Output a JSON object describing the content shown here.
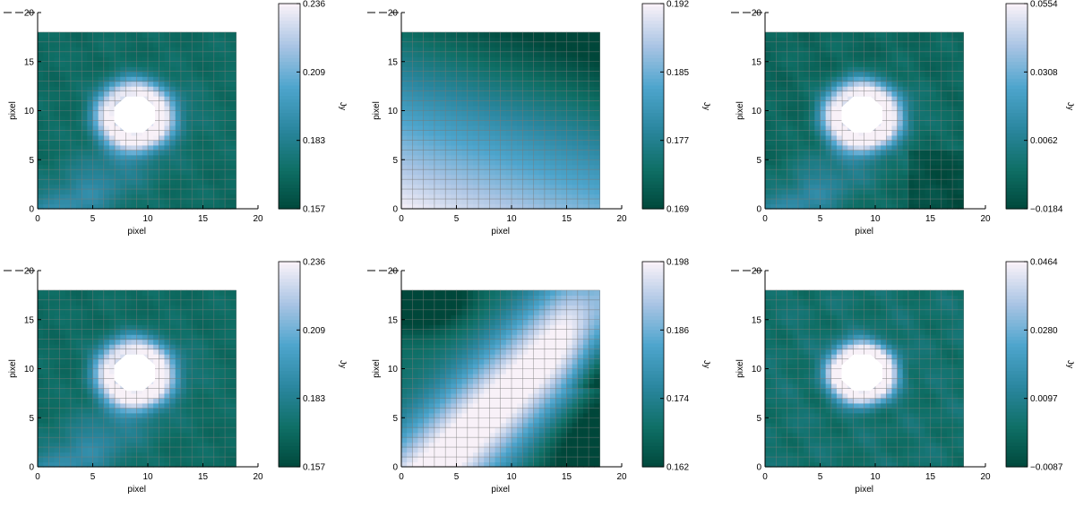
{
  "chart_data": [
    {
      "type": "heatmap",
      "xlabel": "pixel",
      "ylabel": "pixel",
      "colorbar_label": "Jy",
      "xlim": [
        0,
        20
      ],
      "ylim": [
        0,
        20
      ],
      "xticks": [
        0,
        5,
        10,
        15,
        20
      ],
      "yticks": [
        0,
        5,
        10,
        15,
        20
      ],
      "colorbar_ticks": [
        "0.157",
        "0.183",
        "0.209",
        "0.236"
      ],
      "vmin": 0.157,
      "vmax": 0.236,
      "field": "ring",
      "masked_center": [
        8.8,
        9.6
      ],
      "masked_radius": 2.0
    },
    {
      "type": "heatmap",
      "xlabel": "pixel",
      "ylabel": "pixel",
      "colorbar_label": "Jy",
      "xlim": [
        0,
        20
      ],
      "ylim": [
        0,
        20
      ],
      "xticks": [
        0,
        5,
        10,
        15,
        20
      ],
      "yticks": [
        0,
        5,
        10,
        15,
        20
      ],
      "colorbar_ticks": [
        "0.169",
        "0.177",
        "0.185",
        "0.192"
      ],
      "vmin": 0.169,
      "vmax": 0.192,
      "field": "gradient"
    },
    {
      "type": "heatmap",
      "xlabel": "pixel",
      "ylabel": "pixel",
      "colorbar_label": "Jy",
      "xlim": [
        0,
        20
      ],
      "ylim": [
        0,
        20
      ],
      "xticks": [
        0,
        5,
        10,
        15,
        20
      ],
      "yticks": [
        0,
        5,
        10,
        15,
        20
      ],
      "colorbar_ticks": [
        "−0.0184",
        "0.0062",
        "0.0308",
        "0.0554"
      ],
      "vmin": -0.0184,
      "vmax": 0.0554,
      "field": "ring_residual",
      "masked_center": [
        8.8,
        9.6
      ],
      "masked_radius": 2.0
    },
    {
      "type": "heatmap",
      "xlabel": "pixel",
      "ylabel": "pixel",
      "colorbar_label": "Jy",
      "xlim": [
        0,
        20
      ],
      "ylim": [
        0,
        20
      ],
      "xticks": [
        0,
        5,
        10,
        15,
        20
      ],
      "yticks": [
        0,
        5,
        10,
        15,
        20
      ],
      "colorbar_ticks": [
        "0.157",
        "0.183",
        "0.209",
        "0.236"
      ],
      "vmin": 0.157,
      "vmax": 0.236,
      "field": "ring",
      "masked_center": [
        8.8,
        9.6
      ],
      "masked_radius": 2.0
    },
    {
      "type": "heatmap",
      "xlabel": "pixel",
      "ylabel": "pixel",
      "colorbar_label": "Jy",
      "xlim": [
        0,
        20
      ],
      "ylim": [
        0,
        20
      ],
      "xticks": [
        0,
        5,
        10,
        15,
        20
      ],
      "yticks": [
        0,
        5,
        10,
        15,
        20
      ],
      "colorbar_ticks": [
        "0.162",
        "0.174",
        "0.186",
        "0.198"
      ],
      "vmin": 0.162,
      "vmax": 0.198,
      "field": "band"
    },
    {
      "type": "heatmap",
      "xlabel": "pixel",
      "ylabel": "pixel",
      "colorbar_label": "Jy",
      "xlim": [
        0,
        20
      ],
      "ylim": [
        0,
        20
      ],
      "xticks": [
        0,
        5,
        10,
        15,
        20
      ],
      "yticks": [
        0,
        5,
        10,
        15,
        20
      ],
      "colorbar_ticks": [
        "−0.0087",
        "0.0097",
        "0.0280",
        "0.0464"
      ],
      "vmin": -0.0087,
      "vmax": 0.0464,
      "field": "weak_residual",
      "masked_center": [
        8.8,
        9.6
      ],
      "masked_radius": 2.0
    }
  ],
  "colormap": [
    "#00473a",
    "#0f6f66",
    "#2b87a0",
    "#4ea5cd",
    "#a9c4e4",
    "#f8f1f8"
  ],
  "grid_color": "#7a7a7a",
  "mask_color": "#ffffff"
}
